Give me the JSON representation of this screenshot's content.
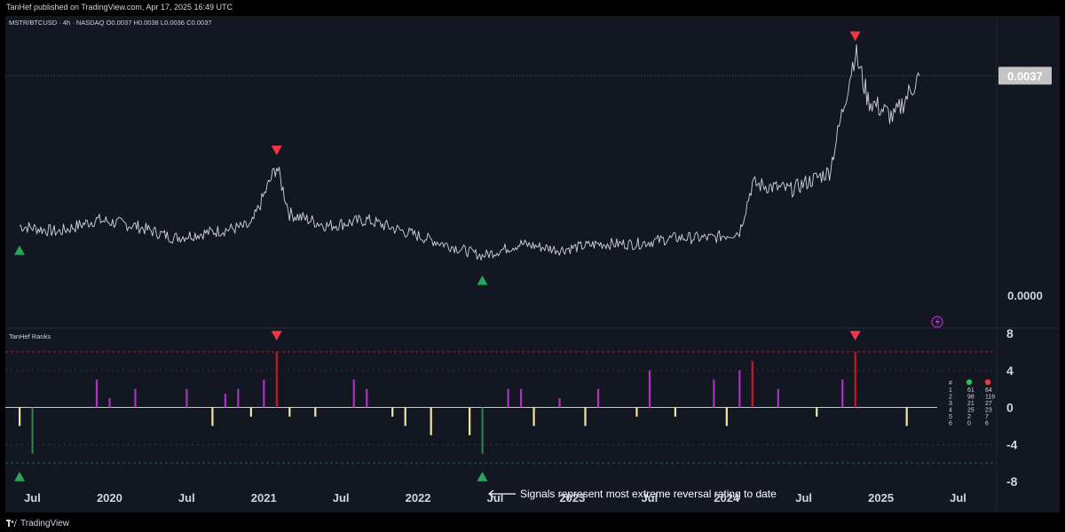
{
  "header": {
    "published": "TanHef published on TradingView.com, Apr 17, 2025 16:49 UTC",
    "symbol": "MSTR/BTCUSD · 4h · NASDAQ",
    "ohlc": "O0.0037 H0.0038 L0.0036 C0.0037"
  },
  "footer": {
    "brand": "TradingView"
  },
  "colors": {
    "background": "#131722",
    "price_line": "#d1d4dc",
    "bearish": "#f23645",
    "bullish": "#26a65b",
    "purple_bar": "#b030c0",
    "red_bar": "#c2182b",
    "yellow_bar": "#f2e5a0",
    "green_bar": "#2e7d4f"
  },
  "price_pane": {
    "last_price": "0.0037",
    "axis_label": "0.0000"
  },
  "indicator": {
    "title": "TanHef Ranks",
    "axis_ticks": [
      "8",
      "4",
      "0",
      "-4",
      "-8"
    ],
    "table": {
      "headers": [
        "#",
        "",
        ""
      ],
      "rows": [
        [
          "1",
          "61",
          "64"
        ],
        [
          "2",
          "98",
          "116"
        ],
        [
          "3",
          "21",
          "27"
        ],
        [
          "4",
          "25",
          "23"
        ],
        [
          "5",
          "2",
          "7"
        ],
        [
          "6",
          "0",
          "6"
        ]
      ]
    }
  },
  "annotation": "Signals represent most extreme reversal rating to date",
  "time_axis": [
    "Jul",
    "2020",
    "Jul",
    "2021",
    "Jul",
    "2022",
    "Jul",
    "2023",
    "Jul",
    "2024",
    "Jul",
    "2025",
    "Jul"
  ],
  "chart_data": [
    {
      "type": "line",
      "title": "MSTR/BTCUSD · 4h · NASDAQ",
      "x": [
        "2019-06",
        "2019-09",
        "2019-12",
        "2020-03",
        "2020-06",
        "2020-09",
        "2020-12",
        "2021-02",
        "2021-03",
        "2021-06",
        "2021-09",
        "2021-12",
        "2022-03",
        "2022-06",
        "2022-09",
        "2022-12",
        "2023-03",
        "2023-06",
        "2023-09",
        "2023-12",
        "2024-02",
        "2024-03",
        "2024-06",
        "2024-09",
        "2024-11",
        "2024-12",
        "2025-02",
        "2025-04"
      ],
      "series": [
        {
          "values": [
            0.0012,
            0.0011,
            0.0013,
            0.0012,
            0.001,
            0.0011,
            0.0012,
            0.0022,
            0.0014,
            0.0012,
            0.0013,
            0.0011,
            0.0009,
            0.0007,
            0.0009,
            0.0008,
            0.0009,
            0.0009,
            0.001,
            0.001,
            0.0011,
            0.0019,
            0.0018,
            0.0021,
            0.0041,
            0.0033,
            0.003,
            0.0037
          ]
        }
      ],
      "last_value": 0.0037,
      "ylim": [
        0,
        0.0044
      ],
      "signals": [
        {
          "x": "2019-06",
          "type": "bullish"
        },
        {
          "x": "2021-02",
          "type": "bearish"
        },
        {
          "x": "2022-06",
          "type": "bullish"
        },
        {
          "x": "2024-11",
          "type": "bearish"
        }
      ]
    },
    {
      "type": "bar",
      "title": "TanHef Ranks",
      "ylim": [
        -8,
        8
      ],
      "levels": [
        6,
        4,
        -4,
        -6
      ],
      "bars": [
        {
          "x": "2019-06",
          "value": -2
        },
        {
          "x": "2019-07",
          "value": -5
        },
        {
          "x": "2019-12",
          "value": 3
        },
        {
          "x": "2020-01",
          "value": 1
        },
        {
          "x": "2020-03",
          "value": 2
        },
        {
          "x": "2020-07",
          "value": 2
        },
        {
          "x": "2020-09",
          "value": -2
        },
        {
          "x": "2020-10",
          "value": 1.5
        },
        {
          "x": "2020-11",
          "value": 2
        },
        {
          "x": "2020-12",
          "value": -1
        },
        {
          "x": "2021-01",
          "value": 3
        },
        {
          "x": "2021-02",
          "value": 6
        },
        {
          "x": "2021-03",
          "value": -1
        },
        {
          "x": "2021-05",
          "value": -1
        },
        {
          "x": "2021-08",
          "value": 3
        },
        {
          "x": "2021-09",
          "value": 2
        },
        {
          "x": "2021-11",
          "value": -1
        },
        {
          "x": "2021-12",
          "value": -2
        },
        {
          "x": "2022-02",
          "value": -3
        },
        {
          "x": "2022-05",
          "value": -3
        },
        {
          "x": "2022-06",
          "value": -5
        },
        {
          "x": "2022-08",
          "value": 2
        },
        {
          "x": "2022-09",
          "value": 2
        },
        {
          "x": "2022-10",
          "value": -2
        },
        {
          "x": "2022-12",
          "value": 1
        },
        {
          "x": "2023-02",
          "value": -2
        },
        {
          "x": "2023-03",
          "value": 2
        },
        {
          "x": "2023-06",
          "value": -1
        },
        {
          "x": "2023-07",
          "value": 4
        },
        {
          "x": "2023-09",
          "value": -1
        },
        {
          "x": "2023-12",
          "value": 3
        },
        {
          "x": "2024-01",
          "value": -2
        },
        {
          "x": "2024-02",
          "value": 4
        },
        {
          "x": "2024-03",
          "value": 5
        },
        {
          "x": "2024-05",
          "value": 2
        },
        {
          "x": "2024-08",
          "value": -1
        },
        {
          "x": "2024-10",
          "value": 3
        },
        {
          "x": "2024-11",
          "value": 6
        },
        {
          "x": "2025-03",
          "value": -2
        }
      ]
    }
  ]
}
